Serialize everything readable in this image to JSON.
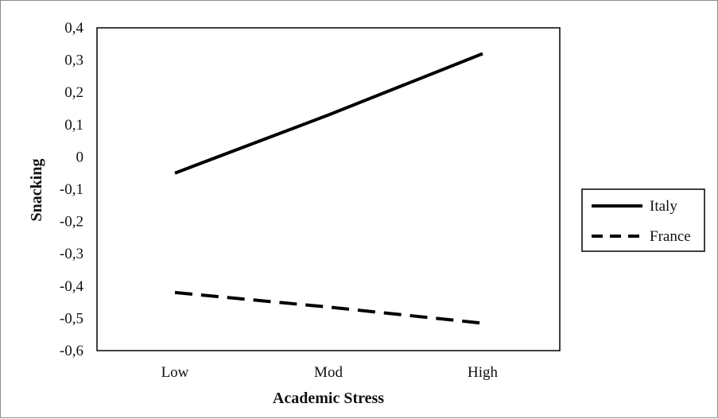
{
  "chart_data": {
    "type": "line",
    "title": "",
    "xlabel": "Academic  Stress",
    "ylabel": "Snacking",
    "categories": [
      "Low",
      "Mod",
      "High"
    ],
    "y_ticks": [
      "0,4",
      "0,3",
      "0,2",
      "0,1",
      "0",
      "-0,1",
      "-0,2",
      "-0,3",
      "-0,4",
      "-0,5",
      "-0,6"
    ],
    "ylim": [
      -0.6,
      0.4
    ],
    "grid": false,
    "legend_position": "right",
    "series": [
      {
        "name": "Italy",
        "style": "solid",
        "color": "#000000",
        "values": [
          -0.05,
          0.13,
          0.32
        ]
      },
      {
        "name": "France",
        "style": "dashed",
        "color": "#000000",
        "values": [
          -0.42,
          -0.465,
          -0.515
        ]
      }
    ]
  }
}
